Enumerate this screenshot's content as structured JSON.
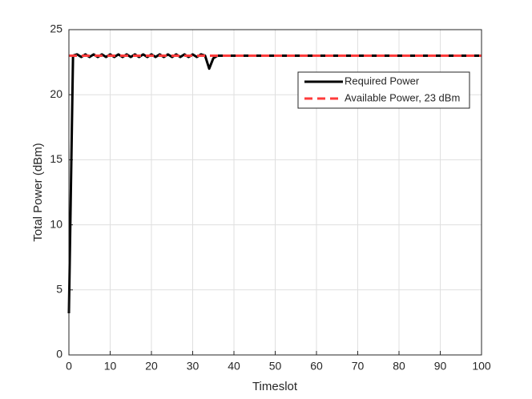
{
  "chart_data": {
    "type": "line",
    "xlabel": "Timeslot",
    "ylabel": "Total Power (dBm)",
    "x": [
      0,
      1,
      2,
      3,
      4,
      5,
      6,
      7,
      8,
      9,
      10,
      11,
      12,
      13,
      14,
      15,
      16,
      17,
      18,
      19,
      20,
      21,
      22,
      23,
      24,
      25,
      26,
      27,
      28,
      29,
      30,
      31,
      32,
      33,
      34,
      35,
      36,
      37,
      38,
      39,
      40,
      41,
      42,
      43,
      44,
      45,
      46,
      47,
      48,
      49,
      50,
      51,
      52,
      53,
      54,
      55,
      56,
      57,
      58,
      59,
      60,
      61,
      62,
      63,
      64,
      65,
      66,
      67,
      68,
      69,
      70,
      71,
      72,
      73,
      74,
      75,
      76,
      77,
      78,
      79,
      80,
      81,
      82,
      83,
      84,
      85,
      86,
      87,
      88,
      89,
      90,
      91,
      92,
      93,
      94,
      95,
      96,
      97,
      98,
      99,
      100
    ],
    "series": [
      {
        "name": "Required Power",
        "color": "#000000",
        "dash": false,
        "values": [
          3.2,
          23,
          23.1,
          22.9,
          23.1,
          22.9,
          23.1,
          22.9,
          23.1,
          22.9,
          23.1,
          22.9,
          23.1,
          22.9,
          23.1,
          22.9,
          23.1,
          22.9,
          23.1,
          22.9,
          23.1,
          22.9,
          23.1,
          22.9,
          23.1,
          22.9,
          23.1,
          22.9,
          23.1,
          22.9,
          23.1,
          22.9,
          23.1,
          23,
          22,
          22.8,
          23,
          23,
          23,
          23,
          23,
          23,
          23,
          23,
          23,
          23,
          23,
          23,
          23,
          23,
          23,
          23,
          23,
          23,
          23,
          23,
          23,
          23,
          23,
          23,
          23,
          23,
          23,
          23,
          23,
          23,
          23,
          23,
          23,
          23,
          23,
          23,
          23,
          23,
          23,
          23,
          23,
          23,
          23,
          23,
          23,
          23,
          23,
          23,
          23,
          23,
          23,
          23,
          23,
          23,
          23,
          23,
          23,
          23,
          23,
          23,
          23,
          23,
          23,
          23,
          23
        ]
      },
      {
        "name": "Available Power, 23 dBm",
        "color": "#ff3b3b",
        "dash": true,
        "x": [
          0,
          100
        ],
        "values": [
          23,
          23
        ]
      }
    ],
    "xlim": [
      0,
      100
    ],
    "xticks": [
      0,
      10,
      20,
      30,
      40,
      50,
      60,
      70,
      80,
      90,
      100
    ],
    "ylim": [
      0,
      25
    ],
    "yticks": [
      0,
      5,
      10,
      15,
      20,
      25
    ],
    "grid": true,
    "legend": "northeast"
  }
}
